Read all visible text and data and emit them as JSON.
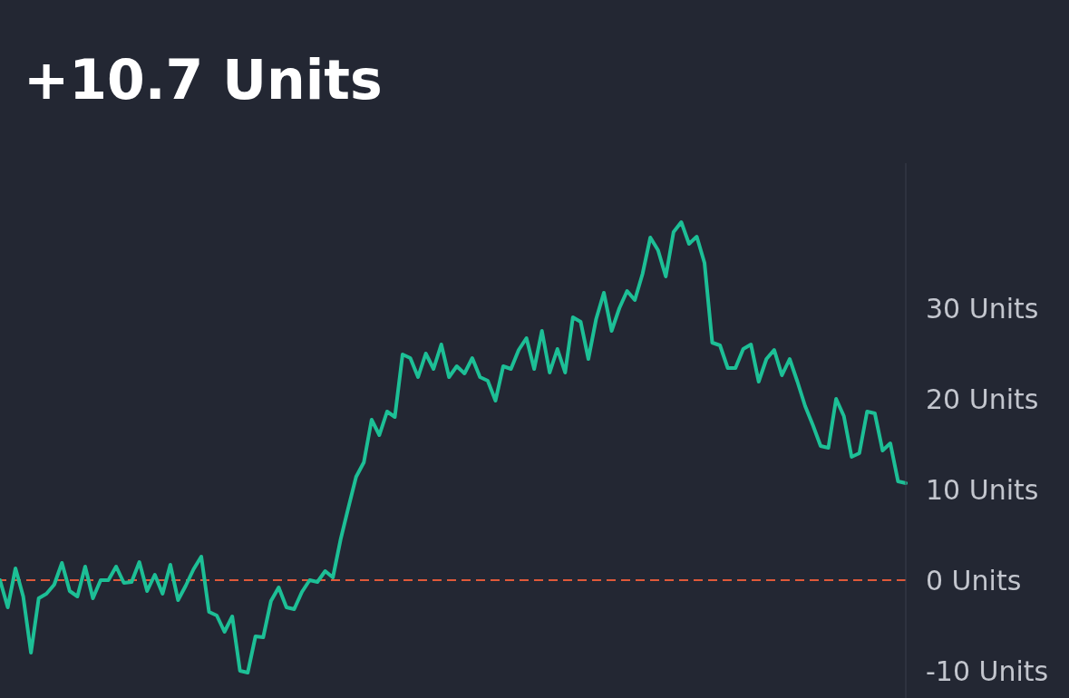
{
  "chart_data": {
    "type": "line",
    "title": "+10.7 Units",
    "categories": [
      null,
      null,
      null,
      null,
      null,
      null,
      null,
      null,
      null,
      null,
      null,
      null,
      null,
      null,
      null,
      null,
      null,
      null,
      null,
      null,
      null,
      null,
      null,
      null,
      null,
      null,
      null,
      null,
      null,
      null,
      null,
      null,
      null,
      null,
      null,
      null,
      null,
      null,
      null,
      null,
      null,
      null,
      null,
      null,
      null,
      null,
      null,
      null,
      null,
      null,
      null,
      null,
      null,
      null,
      null,
      null,
      null,
      null,
      null,
      null,
      null,
      null,
      null,
      null,
      null,
      null,
      null,
      null,
      null,
      null,
      null,
      null,
      null,
      null,
      null,
      null,
      null,
      null,
      null,
      null,
      null,
      null,
      null,
      null,
      null,
      null,
      null,
      null,
      null,
      null,
      null,
      null,
      null,
      null,
      null,
      null,
      null,
      null,
      null,
      null,
      null,
      null,
      null,
      null,
      null,
      null,
      null,
      null,
      null,
      null,
      null,
      null,
      null,
      null,
      null,
      null,
      null,
      null
    ],
    "series": [
      {
        "color": "#1dbf96",
        "values": [
          0,
          -3,
          1.3,
          -1.8,
          -8,
          -2,
          -1.5,
          -0.5,
          1.9,
          -1.2,
          -1.8,
          1.5,
          -2,
          0,
          0,
          1.5,
          -0.3,
          -0.2,
          2,
          -1.2,
          0.6,
          -1.5,
          1.7,
          -2.2,
          -0.6,
          1.2,
          2.6,
          -3.5,
          -3.9,
          -5.7,
          -4,
          -10,
          -10.2,
          -6.2,
          -6.3,
          -2.3,
          -0.8,
          -3,
          -3.2,
          -1.3,
          0,
          -0.2,
          1,
          0.3,
          4.5,
          8,
          11.4,
          13,
          17.7,
          16,
          18.6,
          18,
          24.9,
          24.5,
          22.4,
          25,
          23.3,
          26,
          22.4,
          23.6,
          22.8,
          24.5,
          22.4,
          22,
          19.8,
          23.6,
          23.3,
          25.4,
          26.7,
          23.3,
          27.5,
          22.9,
          25.5,
          22.9,
          29,
          28.5,
          24.4,
          28.8,
          31.7,
          27.5,
          30,
          31.9,
          30.9,
          33.8,
          37.8,
          36.4,
          33.5,
          38.4,
          39.5,
          37.1,
          37.9,
          35,
          26.2,
          25.9,
          23.4,
          23.4,
          25.5,
          26,
          21.9,
          24.4,
          25.4,
          22.6,
          24.4,
          21.9,
          19.2,
          17.1,
          14.8,
          14.6,
          20,
          18.1,
          13.6,
          14,
          18.6,
          18.4,
          14.3,
          15.1,
          10.9,
          10.7
        ]
      }
    ],
    "ylim": [
      -13,
      46
    ],
    "yticks": [
      {
        "value": -10,
        "label": "-10 Units"
      },
      {
        "value": 0,
        "label": "0 Units"
      },
      {
        "value": 10,
        "label": "10 Units"
      },
      {
        "value": 20,
        "label": "20 Units"
      },
      {
        "value": 30,
        "label": "30 Units"
      }
    ],
    "ref_lines": [
      {
        "axis": "y",
        "value": 0,
        "color": "#e0593a",
        "line_style": "dashed"
      }
    ]
  }
}
